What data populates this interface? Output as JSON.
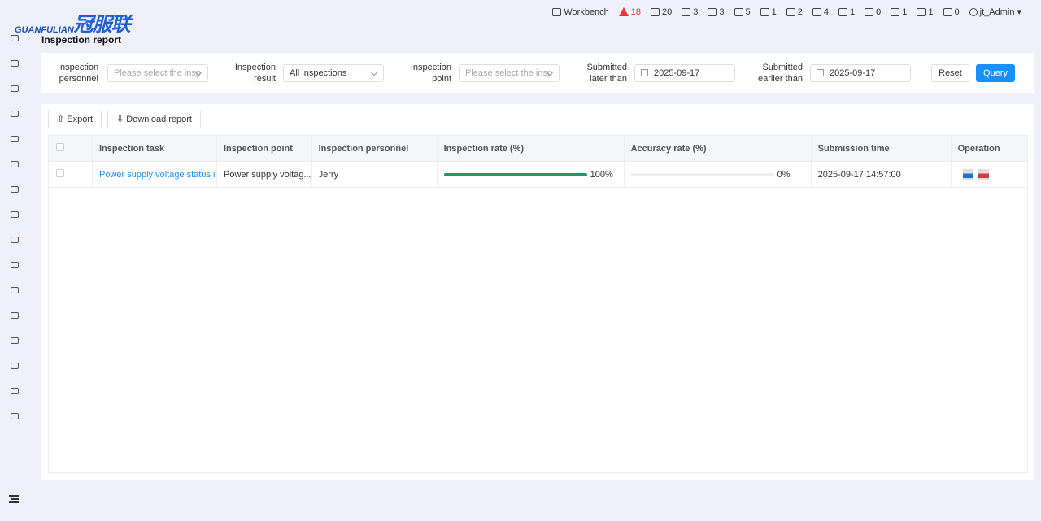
{
  "logo": {
    "en": "GUANFULIAN",
    "cn": "冠服联"
  },
  "page_title": "Inspection report",
  "topbar": {
    "workbench": "Workbench",
    "alerts": "18",
    "stats": [
      "20",
      "3",
      "3",
      "5",
      "1",
      "2",
      "4",
      "1",
      "0",
      "1",
      "1",
      "0"
    ],
    "user": "jt_Admin"
  },
  "filters": {
    "personnel_label": "Inspection personnel",
    "personnel_placeholder": "Please select the insp",
    "result_label": "Inspection result",
    "result_value": "All inspections",
    "point_label": "Inspection point",
    "point_placeholder": "Please select the insp",
    "later_label": "Submitted later than",
    "later_value": "2025-09-17",
    "earlier_label": "Submitted earlier than",
    "earlier_value": "2025-09-17",
    "reset": "Reset",
    "query": "Query"
  },
  "toolbar": {
    "export": "Export",
    "download": "Download report"
  },
  "table": {
    "headers": [
      "Inspection task",
      "Inspection point",
      "Inspection personnel",
      "Inspection rate (%)",
      "Accuracy rate (%)",
      "Submission time",
      "Operation"
    ],
    "rows": [
      {
        "task": "Power supply voltage status insp",
        "point": "Power supply voltag...",
        "personnel": "Jerry",
        "inspection_rate": 100,
        "inspection_rate_text": "100%",
        "accuracy_rate": 0,
        "accuracy_rate_text": "0%",
        "time": "2025-09-17 14:57:00"
      }
    ]
  },
  "colors": {
    "accent": "#1890ff",
    "progress": "#13a05c",
    "alert": "#e53935"
  }
}
